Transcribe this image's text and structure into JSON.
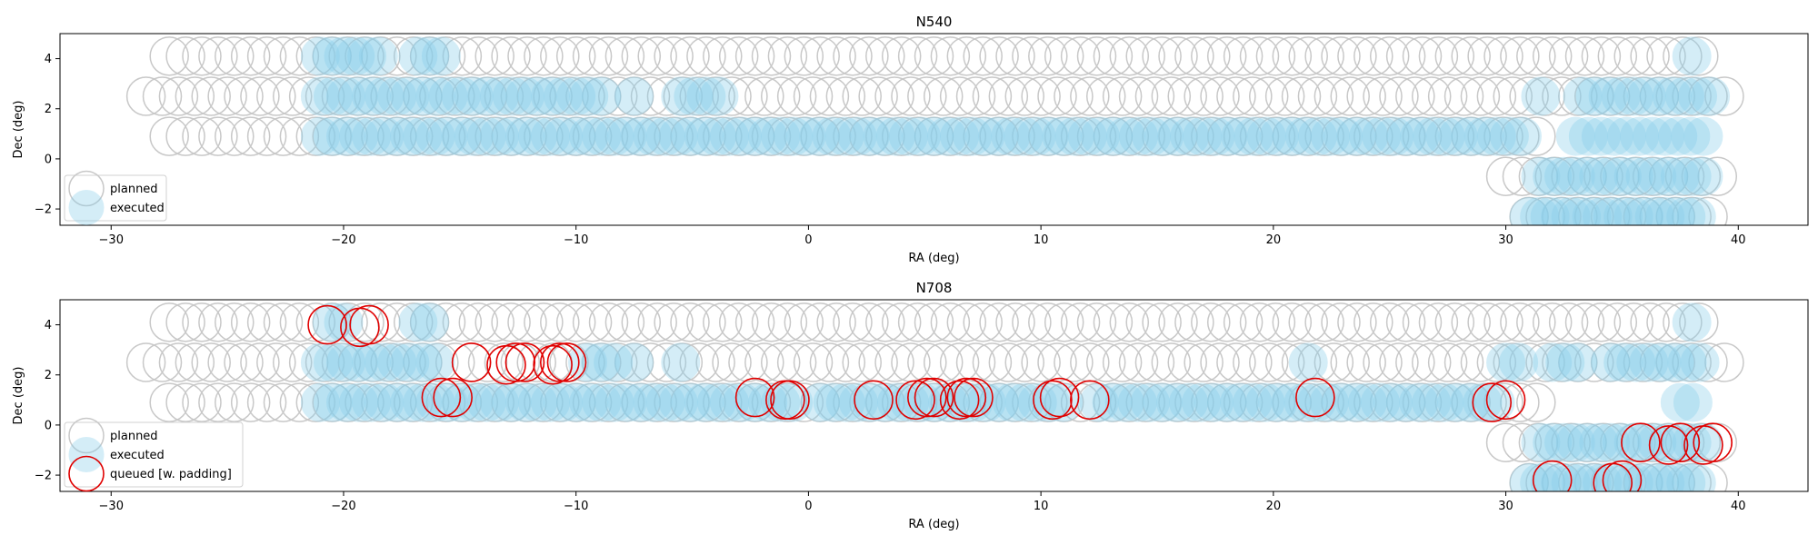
{
  "chart_data": [
    {
      "type": "scatter",
      "title": "N540",
      "xlabel": "RA (deg)",
      "ylabel": "Dec (deg)",
      "xlim": [
        -32.2,
        43.0
      ],
      "ylim": [
        -2.65,
        5.0
      ],
      "xticks": [
        -30,
        -20,
        -10,
        0,
        10,
        20,
        30,
        40
      ],
      "yticks": [
        -2,
        0,
        2,
        4
      ],
      "grid": false,
      "legend_position": "lower-left",
      "legend": [
        {
          "label": "planned",
          "style": "planned"
        },
        {
          "label": "executed",
          "style": "executed"
        }
      ],
      "series": [
        {
          "name": "planned",
          "style": "planned",
          "rows": [
            {
              "dec": 4.1,
              "ra_start": -27.5,
              "ra_end": 38.5,
              "step": 0.7
            },
            {
              "dec": 2.5,
              "ra_start": -28.5,
              "ra_end": 39.5,
              "step": 0.7
            },
            {
              "dec": 0.9,
              "ra_start": -27.5,
              "ra_end": 31.5,
              "step": 0.7
            },
            {
              "dec": -0.7,
              "ra_start": 30.0,
              "ra_end": 39.5,
              "step": 0.7
            },
            {
              "dec": -2.3,
              "ra_start": 31.0,
              "ra_end": 39.0,
              "step": 0.7
            }
          ]
        },
        {
          "name": "executed",
          "style": "executed",
          "rows": [
            {
              "dec": 4.1,
              "ranges": [
                [
                  -21.0,
                  -18.5
                ],
                [
                  -16.8,
                  -15.8
                ],
                [
                  38.0,
                  38.4
                ]
              ],
              "step": 0.5
            },
            {
              "dec": 2.5,
              "ranges": [
                [
                  -21.0,
                  -8.5
                ],
                [
                  -7.5,
                  -7.3
                ],
                [
                  -5.5,
                  -3.7
                ],
                [
                  31.5,
                  32.0
                ],
                [
                  33.3,
                  39.0
                ]
              ],
              "step": 0.55
            },
            {
              "dec": 0.9,
              "ranges": [
                [
                  -21.0,
                  31.0
                ],
                [
                  33.0,
                  38.5
                ]
              ],
              "step": 0.55
            },
            {
              "dec": -0.7,
              "ranges": [
                [
                  31.5,
                  38.8
                ]
              ],
              "step": 0.5
            },
            {
              "dec": -2.3,
              "ranges": [
                [
                  31.0,
                  38.5
                ]
              ],
              "step": 0.45
            }
          ]
        }
      ]
    },
    {
      "type": "scatter",
      "title": "N708",
      "xlabel": "RA (deg)",
      "ylabel": "Dec (deg)",
      "xlim": [
        -32.2,
        43.0
      ],
      "ylim": [
        -2.65,
        5.0
      ],
      "xticks": [
        -30,
        -20,
        -10,
        0,
        10,
        20,
        30,
        40
      ],
      "yticks": [
        -2,
        0,
        2,
        4
      ],
      "grid": false,
      "legend_position": "lower-left",
      "legend": [
        {
          "label": "planned",
          "style": "planned"
        },
        {
          "label": "executed",
          "style": "executed"
        },
        {
          "label": "queued [w. padding]",
          "style": "queued"
        }
      ],
      "series": [
        {
          "name": "planned",
          "style": "planned",
          "rows": [
            {
              "dec": 4.1,
              "ra_start": -27.5,
              "ra_end": 38.5,
              "step": 0.7
            },
            {
              "dec": 2.5,
              "ra_start": -28.5,
              "ra_end": 39.5,
              "step": 0.7
            },
            {
              "dec": 0.9,
              "ra_start": -27.5,
              "ra_end": 31.5,
              "step": 0.7
            },
            {
              "dec": -0.7,
              "ra_start": 30.0,
              "ra_end": 39.5,
              "step": 0.7
            },
            {
              "dec": -2.3,
              "ra_start": 31.0,
              "ra_end": 39.0,
              "step": 0.7
            }
          ]
        },
        {
          "name": "executed",
          "style": "executed",
          "rows": [
            {
              "dec": 4.1,
              "ranges": [
                [
                  -20.5,
                  -20.0
                ],
                [
                  -16.8,
                  -16.2
                ],
                [
                  38.0,
                  38.4
                ]
              ],
              "step": 0.5
            },
            {
              "dec": 2.5,
              "ranges": [
                [
                  -21.0,
                  -16.0
                ],
                [
                  -9.5,
                  -8.2
                ],
                [
                  -7.5,
                  -7.3
                ],
                [
                  -5.5,
                  -5.0
                ],
                [
                  21.5,
                  21.8
                ],
                [
                  30.0,
                  31.0
                ],
                [
                  32.0,
                  33.5
                ],
                [
                  34.5,
                  38.5
                ]
              ],
              "step": 0.55
            },
            {
              "dec": 0.9,
              "ranges": [
                [
                  -21.0,
                  -0.3
                ],
                [
                  0.5,
                  11.0
                ],
                [
                  12.5,
                  30.0
                ],
                [
                  37.5,
                  38.5
                ]
              ],
              "step": 0.55
            },
            {
              "dec": -0.7,
              "ranges": [
                [
                  31.5,
                  38.8
                ]
              ],
              "step": 0.5
            },
            {
              "dec": -2.3,
              "ranges": [
                [
                  31.0,
                  38.5
                ]
              ],
              "step": 0.45
            }
          ]
        },
        {
          "name": "queued [w. padding]",
          "style": "queued",
          "points": [
            [
              -20.7,
              4.0
            ],
            [
              -19.3,
              3.9
            ],
            [
              -18.9,
              4.0
            ],
            [
              -14.5,
              2.5
            ],
            [
              -13.0,
              2.4
            ],
            [
              -12.6,
              2.5
            ],
            [
              -12.2,
              2.5
            ],
            [
              -11.0,
              2.4
            ],
            [
              -10.7,
              2.5
            ],
            [
              -10.4,
              2.5
            ],
            [
              -15.8,
              1.1
            ],
            [
              -15.3,
              1.1
            ],
            [
              -2.3,
              1.1
            ],
            [
              -1.0,
              1.0
            ],
            [
              -0.8,
              1.0
            ],
            [
              2.8,
              1.0
            ],
            [
              4.6,
              1.0
            ],
            [
              5.1,
              1.1
            ],
            [
              5.4,
              1.1
            ],
            [
              6.5,
              1.0
            ],
            [
              6.8,
              1.1
            ],
            [
              7.1,
              1.1
            ],
            [
              10.5,
              1.0
            ],
            [
              10.8,
              1.1
            ],
            [
              12.1,
              1.0
            ],
            [
              21.8,
              1.1
            ],
            [
              29.4,
              0.9
            ],
            [
              30.0,
              1.0
            ],
            [
              35.8,
              -0.7
            ],
            [
              37.0,
              -0.8
            ],
            [
              37.5,
              -0.7
            ],
            [
              38.5,
              -0.8
            ],
            [
              38.9,
              -0.7
            ],
            [
              32.0,
              -2.2
            ],
            [
              34.6,
              -2.3
            ],
            [
              35.0,
              -2.2
            ]
          ]
        }
      ]
    }
  ]
}
